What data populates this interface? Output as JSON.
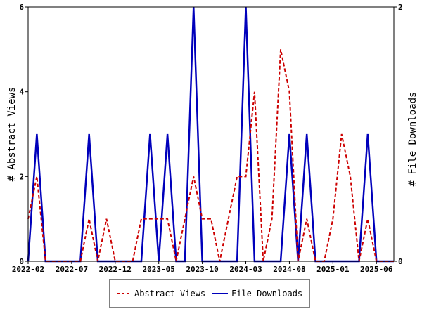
{
  "chart_data": {
    "type": "line",
    "x_tick_labels": [
      "2022-02",
      "2022-07",
      "2022-12",
      "2023-05",
      "2023-10",
      "2024-03",
      "2024-08",
      "2025-01",
      "2025-06"
    ],
    "y_left": {
      "label": "# Abstract Views",
      "ylim": [
        0,
        6
      ],
      "ticks": [
        0,
        2,
        4,
        6
      ]
    },
    "y_right": {
      "label": "# File Downloads",
      "ylim": [
        0,
        2
      ],
      "ticks": [
        0,
        2
      ]
    },
    "grid": false,
    "legend_position": "bottom-center",
    "series": [
      {
        "name": "Abstract Views",
        "axis": "left",
        "color": "#cc0000",
        "style": "dashed",
        "x": [
          "2022-02",
          "2022-03",
          "2022-04",
          "2022-05",
          "2022-06",
          "2022-07",
          "2022-08",
          "2022-09",
          "2022-10",
          "2022-11",
          "2022-12",
          "2023-01",
          "2023-02",
          "2023-03",
          "2023-04",
          "2023-05",
          "2023-06",
          "2023-07",
          "2023-08",
          "2023-09",
          "2023-10",
          "2023-11",
          "2023-12",
          "2024-01",
          "2024-02",
          "2024-03",
          "2024-04",
          "2024-05",
          "2024-06",
          "2024-07",
          "2024-08",
          "2024-09",
          "2024-10",
          "2024-11",
          "2024-12",
          "2025-01",
          "2025-02",
          "2025-03",
          "2025-04",
          "2025-05",
          "2025-06",
          "2025-07",
          "2025-08"
        ],
        "values": [
          1,
          2,
          0,
          0,
          0,
          0,
          0,
          1,
          0,
          1,
          0,
          0,
          0,
          1,
          1,
          1,
          1,
          0,
          1,
          2,
          1,
          1,
          0,
          1,
          2,
          2,
          4,
          0,
          1,
          5,
          4,
          0,
          1,
          0,
          0,
          1,
          3,
          2,
          0,
          1,
          0,
          0,
          0
        ]
      },
      {
        "name": "File Downloads",
        "axis": "right",
        "color": "#0000bb",
        "style": "solid",
        "x": [
          "2022-02",
          "2022-03",
          "2022-04",
          "2022-05",
          "2022-06",
          "2022-07",
          "2022-08",
          "2022-09",
          "2022-10",
          "2022-11",
          "2022-12",
          "2023-01",
          "2023-02",
          "2023-03",
          "2023-04",
          "2023-05",
          "2023-06",
          "2023-07",
          "2023-08",
          "2023-09",
          "2023-10",
          "2023-11",
          "2023-12",
          "2024-01",
          "2024-02",
          "2024-03",
          "2024-04",
          "2024-05",
          "2024-06",
          "2024-07",
          "2024-08",
          "2024-09",
          "2024-10",
          "2024-11",
          "2024-12",
          "2025-01",
          "2025-02",
          "2025-03",
          "2025-04",
          "2025-05",
          "2025-06",
          "2025-07",
          "2025-08"
        ],
        "values": [
          0,
          1,
          0,
          0,
          0,
          0,
          0,
          1,
          0,
          0,
          0,
          0,
          0,
          0,
          1,
          0,
          1,
          0,
          0,
          2,
          0,
          0,
          0,
          0,
          0,
          2,
          0,
          0,
          0,
          0,
          1,
          0,
          1,
          0,
          0,
          0,
          0,
          0,
          0,
          1,
          0,
          0,
          0
        ]
      }
    ]
  }
}
